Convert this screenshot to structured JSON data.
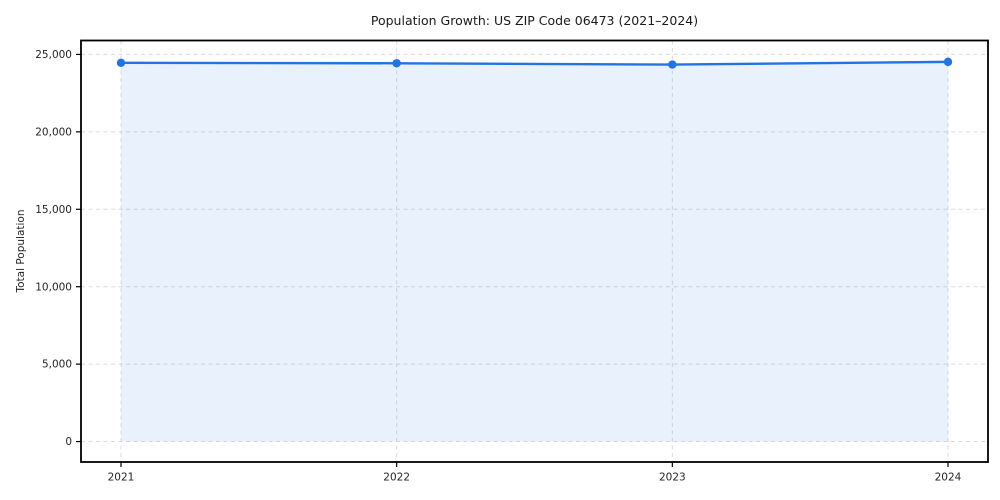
{
  "chart_data": {
    "type": "line",
    "title": "Population Growth: US ZIP Code 06473 (2021–2024)",
    "xlabel": "",
    "ylabel": "Total Population",
    "categories": [
      "2021",
      "2022",
      "2023",
      "2024"
    ],
    "series": [
      {
        "name": "Total Population",
        "values": [
          24460,
          24430,
          24345,
          24520
        ]
      }
    ],
    "markers": true,
    "area_fill": true,
    "legend": "none",
    "grid": "dashed-both-axes",
    "ylim": [
      -1320,
      25900
    ],
    "yticks": [
      0,
      5000,
      10000,
      15000,
      20000,
      25000
    ],
    "ytick_labels": [
      "0",
      "5,000",
      "10,000",
      "15,000",
      "20,000",
      "25,000"
    ],
    "colors": {
      "line": "#2373e2",
      "marker": "#2373e2",
      "area": "rgba(35,115,226,0.10)",
      "grid": "#dbdbdb",
      "spine": "#000000",
      "tick_text": "#262626"
    }
  }
}
